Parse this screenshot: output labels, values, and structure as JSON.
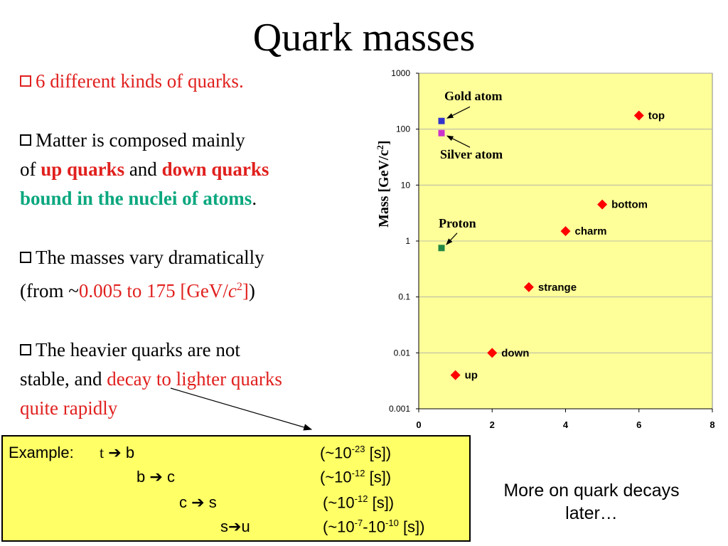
{
  "title": "Quark masses",
  "bullets": {
    "b1": "6 different kinds of quarks.",
    "b2_a": "Matter is composed mainly",
    "b2_b": "of",
    "b2_up": "up quarks",
    "b2_and": "and",
    "b2_down": "down quarks",
    "b2_bound": "bound in the nuclei of  atoms",
    "b2_period": ".",
    "b3_a": "The masses vary dramatically",
    "b3_from": "(from ~",
    "b3_range": "0.005 to 175 [GeV/",
    "b3_c": "c",
    "b3_sup": "2",
    "b3_close_red": "]",
    "b3_close": ")",
    "b4_a": "The heavier quarks are not",
    "b4_b": "stable, and",
    "b4_red1": "decay to lighter quarks",
    "b4_red2": "quite rapidly"
  },
  "example": {
    "label": "Example:",
    "r1_from": "t",
    "r1_to": "b",
    "r1_time": "(~10",
    "r1_exp": "-23",
    "r1_unit": "[s])",
    "r2_from": "b",
    "r2_to": "c",
    "r2_time": "(~10",
    "r2_exp": "-12",
    "r2_unit": "[s])",
    "r3_from": "c",
    "r3_to": "s",
    "r3_time": "(~10",
    "r3_exp": "-12",
    "r3_unit": "[s])",
    "r4_from": "s",
    "r4_to": "u",
    "r4_time": "(~10",
    "r4_exp1": "-7",
    "r4_mid": "-10",
    "r4_exp2": "-10",
    "r4_unit": "[s])"
  },
  "later": "More on quark decays later…",
  "chart_data": {
    "type": "scatter",
    "ylabel": "Mass [GeV/c",
    "ylabel_sup": "2",
    "ylabel_close": "]",
    "xlim": [
      0,
      8
    ],
    "ylim": [
      0.001,
      1000
    ],
    "yscale": "log",
    "x_ticks": [
      "0",
      "2",
      "4",
      "6",
      "8"
    ],
    "y_ticks": [
      "0.001",
      "0.01",
      "0.1",
      "1",
      "10",
      "100",
      "1000"
    ],
    "grid": "horizontal",
    "plot_bg": "#ffff99",
    "quarks": [
      {
        "name": "up",
        "x": 1,
        "y": 0.004
      },
      {
        "name": "down",
        "x": 2,
        "y": 0.01
      },
      {
        "name": "strange",
        "x": 3,
        "y": 0.15
      },
      {
        "name": "charm",
        "x": 4,
        "y": 1.5
      },
      {
        "name": "bottom",
        "x": 5,
        "y": 4.5
      },
      {
        "name": "top",
        "x": 6,
        "y": 175
      }
    ],
    "quark_color": "#ff0000",
    "references": [
      {
        "name": "Gold atom",
        "x": 0.62,
        "y": 140,
        "color": "#3333cc"
      },
      {
        "name": "Silver atom",
        "x": 0.62,
        "y": 85,
        "color": "#cc33cc"
      },
      {
        "name": "Proton",
        "x": 0.62,
        "y": 0.75,
        "color": "#228844"
      }
    ]
  }
}
